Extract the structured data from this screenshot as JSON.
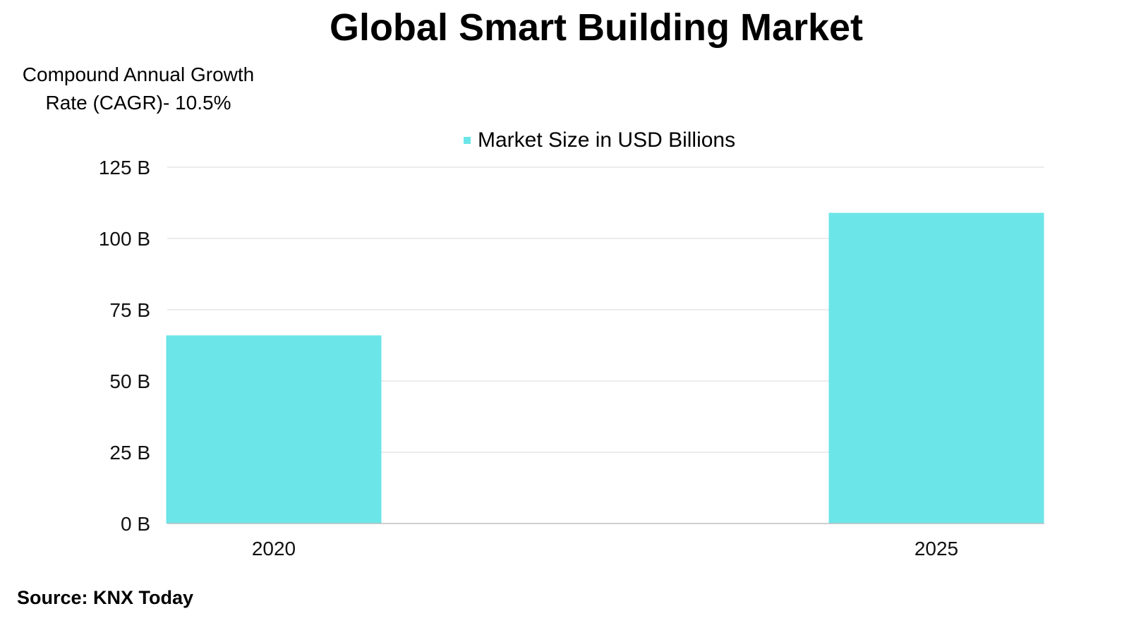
{
  "chart_data": {
    "type": "bar",
    "title": "Global Smart Building Market",
    "subtitle": "Compound Annual Growth Rate (CAGR)- 10.5%",
    "categories": [
      "2020",
      "2025"
    ],
    "series": [
      {
        "name": "Market Size in USD Billions",
        "values": [
          66,
          109
        ],
        "color": "#6ce5e8"
      }
    ],
    "xlabel": "",
    "ylabel": "",
    "ylim": [
      0,
      125
    ],
    "yticks": [
      0,
      25,
      50,
      75,
      100,
      125
    ],
    "ytick_labels": [
      "0 B",
      "25 B",
      "50 B",
      "75 B",
      "100 B",
      "125 B"
    ],
    "grid": true,
    "legend_position": "top-center"
  },
  "source": "Source: KNX Today",
  "colors": {
    "bar": "#6ce5e8",
    "grid": "#d9d9d9",
    "axis": "#bfbfbf"
  }
}
